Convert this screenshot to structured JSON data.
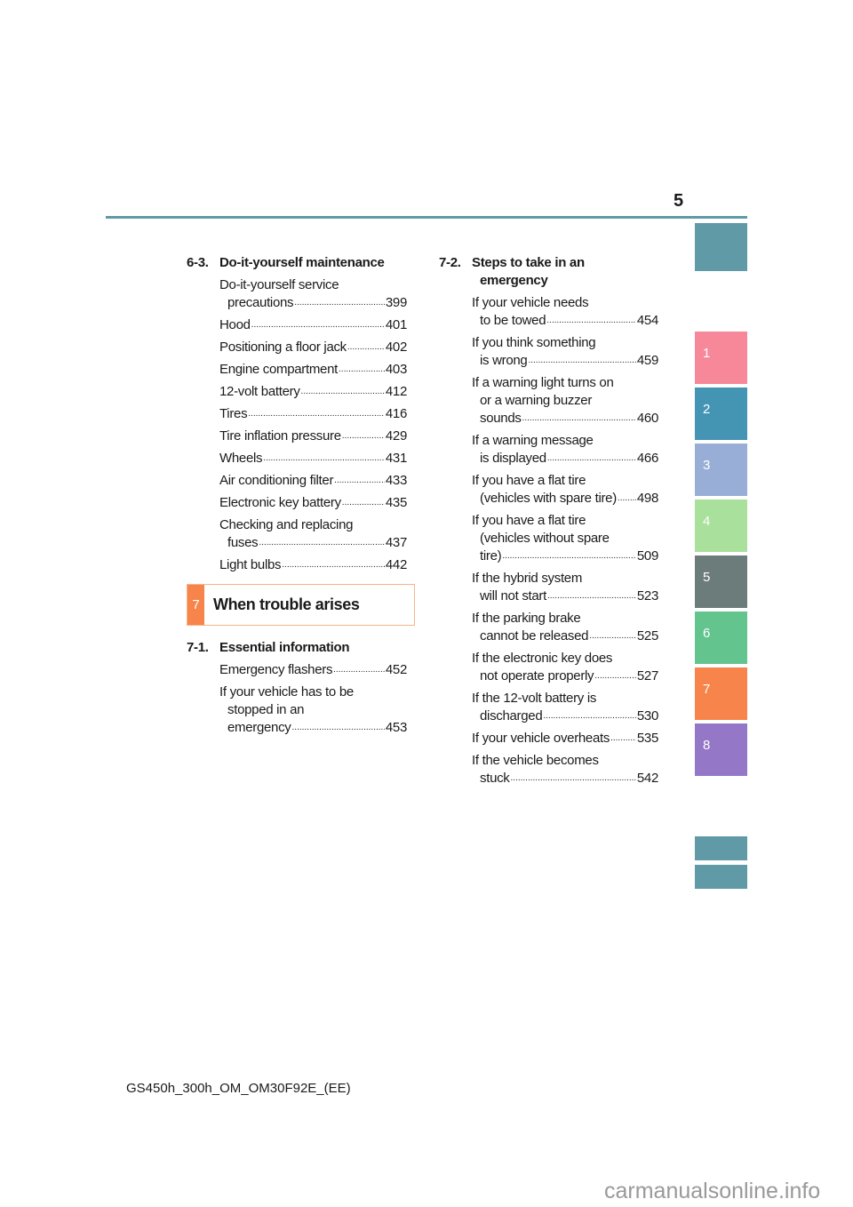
{
  "header": {
    "page_number": "5"
  },
  "tabs": {
    "top": {
      "color": "#5f9aa6"
    },
    "chapters": [
      {
        "label": "1",
        "color": "#f7889a"
      },
      {
        "label": "2",
        "color": "#4494b4"
      },
      {
        "label": "3",
        "color": "#98aed6"
      },
      {
        "label": "4",
        "color": "#a8e09c"
      },
      {
        "label": "5",
        "color": "#6c7c7a"
      },
      {
        "label": "6",
        "color": "#63c48d"
      },
      {
        "label": "7",
        "color": "#f7844a"
      },
      {
        "label": "8",
        "color": "#9477c6"
      }
    ],
    "bottom_color": "#5f9aa6"
  },
  "left": {
    "section_6_3": {
      "num": "6-3.",
      "title": "Do-it-yourself maintenance",
      "entries": [
        {
          "lines": [
            "Do-it-yourself service",
            "precautions"
          ],
          "page": "399"
        },
        {
          "lines": [
            "Hood"
          ],
          "page": "401"
        },
        {
          "lines": [
            "Positioning a floor jack"
          ],
          "page": "402"
        },
        {
          "lines": [
            "Engine compartment"
          ],
          "page": "403"
        },
        {
          "lines": [
            "12-volt battery"
          ],
          "page": "412"
        },
        {
          "lines": [
            "Tires"
          ],
          "page": "416"
        },
        {
          "lines": [
            "Tire inflation pressure"
          ],
          "page": "429"
        },
        {
          "lines": [
            "Wheels"
          ],
          "page": "431"
        },
        {
          "lines": [
            "Air conditioning filter"
          ],
          "page": "433"
        },
        {
          "lines": [
            "Electronic key battery"
          ],
          "page": "435"
        },
        {
          "lines": [
            "Checking and replacing",
            "fuses"
          ],
          "page": "437"
        },
        {
          "lines": [
            "Light bulbs"
          ],
          "page": "442"
        }
      ]
    },
    "chapter_box": {
      "num": "7",
      "title": "When trouble arises",
      "color": "#f7844a"
    },
    "section_7_1": {
      "num": "7-1.",
      "title": "Essential information",
      "entries": [
        {
          "lines": [
            "Emergency flashers"
          ],
          "page": "452"
        },
        {
          "lines": [
            "If your vehicle has to be",
            "stopped in an",
            "emergency"
          ],
          "page": "453"
        }
      ]
    }
  },
  "right": {
    "section_7_2": {
      "num": "7-2.",
      "title_lines": [
        "Steps to take in an",
        "emergency"
      ],
      "entries": [
        {
          "lines": [
            "If your vehicle needs",
            "to be towed"
          ],
          "page": "454"
        },
        {
          "lines": [
            "If you think something",
            "is wrong"
          ],
          "page": "459"
        },
        {
          "lines": [
            "If a warning light turns on",
            "or a warning buzzer",
            "sounds"
          ],
          "page": "460"
        },
        {
          "lines": [
            "If a warning message",
            "is displayed"
          ],
          "page": "466"
        },
        {
          "lines": [
            "If you have a flat tire",
            "(vehicles with spare tire)"
          ],
          "page": "498"
        },
        {
          "lines": [
            "If you have a flat tire",
            "(vehicles without spare",
            "tire)"
          ],
          "page": "509"
        },
        {
          "lines": [
            "If the hybrid system",
            "will not start"
          ],
          "page": "523"
        },
        {
          "lines": [
            "If the parking brake",
            "cannot be released"
          ],
          "page": "525"
        },
        {
          "lines": [
            "If the electronic key does",
            "not operate properly"
          ],
          "page": "527"
        },
        {
          "lines": [
            "If the 12-volt battery is",
            "discharged"
          ],
          "page": "530"
        },
        {
          "lines": [
            "If your vehicle overheats"
          ],
          "page": "535"
        },
        {
          "lines": [
            "If the vehicle becomes",
            "stuck"
          ],
          "page": "542"
        }
      ]
    }
  },
  "footer": {
    "text": "GS450h_300h_OM_OM30F92E_(EE)"
  },
  "watermark": "carmanualsonline.info"
}
